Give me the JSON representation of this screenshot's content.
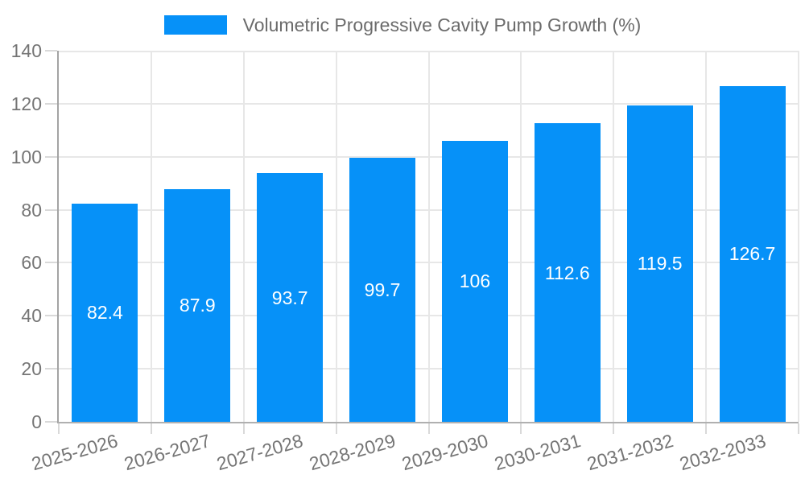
{
  "chart_data": {
    "type": "bar",
    "title": "Volumetric Progressive Cavity Pump Growth (%)",
    "legend_position": "top",
    "categories": [
      "2025-2026",
      "2026-2027",
      "2027-2028",
      "2028-2029",
      "2029-2030",
      "2030-2031",
      "2031-2032",
      "2032-2033"
    ],
    "series": [
      {
        "name": "Volumetric Progressive Cavity Pump Growth (%)",
        "values": [
          82.4,
          87.9,
          93.7,
          99.7,
          106,
          112.6,
          119.5,
          126.7
        ],
        "value_labels": [
          "82.4",
          "87.9",
          "93.7",
          "99.7",
          "106",
          "112.6",
          "119.5",
          "126.7"
        ]
      }
    ],
    "xlabel": "",
    "ylabel": "",
    "ylim": [
      0,
      140
    ],
    "yticks": [
      0,
      20,
      40,
      60,
      80,
      100,
      120,
      140
    ],
    "grid": true,
    "colors": {
      "bar": "#0691f8",
      "grid": "#e7e7e7",
      "tick_mark": "#d9d9d9",
      "axis_text": "#757575",
      "value_text": "#ffffff",
      "legend_text": "#6b6b6b",
      "background": "#ffffff"
    }
  }
}
